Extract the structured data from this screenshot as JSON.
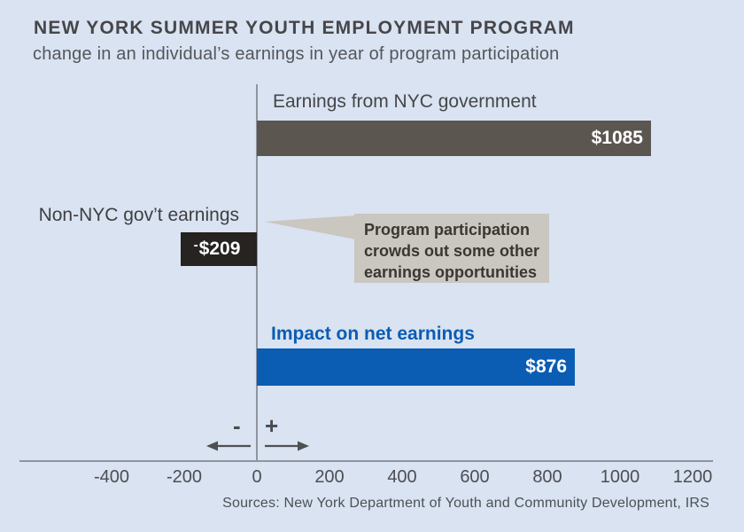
{
  "chart_data": {
    "type": "bar",
    "orientation": "horizontal",
    "title": "NEW YORK SUMMER YOUTH EMPLOYMENT PROGRAM",
    "subtitle": "change in an individual’s earnings in year of program participation",
    "categories": [
      "Earnings from NYC government",
      "Non-NYC gov’t earnings",
      "Impact on net earnings"
    ],
    "values": [
      1085,
      -209,
      876
    ],
    "value_labels": [
      "$1085",
      "-$209",
      "$876"
    ],
    "neg_value_parts": {
      "minus": "-",
      "amount": "$209"
    },
    "xticks": [
      -400,
      -200,
      0,
      200,
      400,
      600,
      800,
      1000,
      1200
    ],
    "xlim": [
      -650,
      1255
    ],
    "grid": false,
    "legend": "none",
    "annotation_lines": [
      "Program participation",
      "crowds out some other",
      "earnings opportunities"
    ],
    "axis_signs": {
      "minus": "-",
      "plus": "+"
    },
    "source": "Sources: New York Department of Youth and Community Development, IRS",
    "colors": {
      "background": "#d9e3f1",
      "bars": [
        "#5b5750",
        "#262320",
        "#0b5cb3"
      ],
      "bar_value_text": "#ffffff",
      "net_label_accent": "#0b5cb3",
      "callout_bg": "#cac6c0",
      "callout_text": "#3a3733",
      "axis_line": "#8f959f",
      "text_dark": "#46464a"
    }
  }
}
